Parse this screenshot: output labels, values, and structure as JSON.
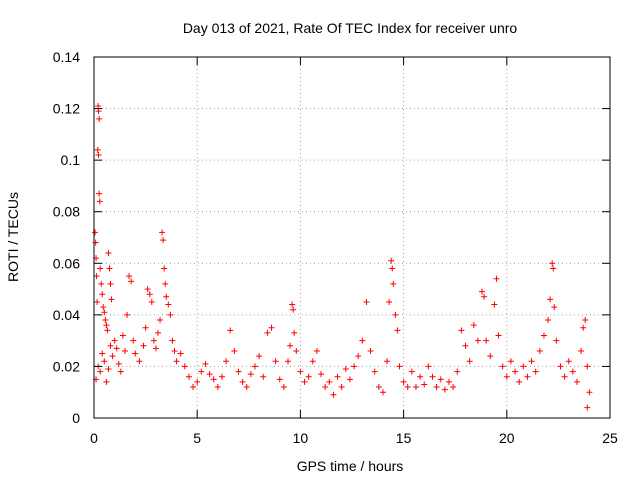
{
  "chart_data": {
    "type": "scatter",
    "title": "Day 013 of 2021, Rate Of TEC Index for receiver unro",
    "xlabel": "GPS time / hours",
    "ylabel": "ROTI / TECUs",
    "xlim": [
      0,
      25
    ],
    "ylim": [
      0,
      0.14
    ],
    "xticks": [
      0,
      5,
      10,
      15,
      20,
      25
    ],
    "yticks": [
      0,
      0.02,
      0.04,
      0.06,
      0.08,
      0.1,
      0.12,
      0.14
    ],
    "xtick_labels": [
      "0",
      "5",
      "10",
      "15",
      "20",
      "25"
    ],
    "ytick_labels": [
      "0",
      "0.02",
      "0.04",
      "0.06",
      "0.08",
      "0.1",
      "0.12",
      "0.14"
    ],
    "grid": true,
    "marker": "plus",
    "color": "#ff0000",
    "points": [
      [
        0.05,
        0.072
      ],
      [
        0.08,
        0.068
      ],
      [
        0.1,
        0.062
      ],
      [
        0.12,
        0.055
      ],
      [
        0.15,
        0.045
      ],
      [
        0.2,
        0.121
      ],
      [
        0.22,
        0.119
      ],
      [
        0.25,
        0.116
      ],
      [
        0.18,
        0.104
      ],
      [
        0.22,
        0.102
      ],
      [
        0.25,
        0.087
      ],
      [
        0.28,
        0.084
      ],
      [
        0.3,
        0.058
      ],
      [
        0.35,
        0.052
      ],
      [
        0.4,
        0.048
      ],
      [
        0.45,
        0.043
      ],
      [
        0.5,
        0.041
      ],
      [
        0.55,
        0.038
      ],
      [
        0.6,
        0.036
      ],
      [
        0.65,
        0.034
      ],
      [
        0.7,
        0.064
      ],
      [
        0.75,
        0.058
      ],
      [
        0.8,
        0.052
      ],
      [
        0.85,
        0.046
      ],
      [
        0.1,
        0.015
      ],
      [
        0.2,
        0.02
      ],
      [
        0.3,
        0.018
      ],
      [
        0.4,
        0.025
      ],
      [
        0.5,
        0.022
      ],
      [
        0.6,
        0.014
      ],
      [
        0.7,
        0.019
      ],
      [
        0.8,
        0.028
      ],
      [
        0.9,
        0.024
      ],
      [
        1.0,
        0.03
      ],
      [
        1.1,
        0.027
      ],
      [
        1.2,
        0.021
      ],
      [
        1.3,
        0.018
      ],
      [
        1.4,
        0.032
      ],
      [
        1.5,
        0.026
      ],
      [
        1.6,
        0.04
      ],
      [
        1.7,
        0.055
      ],
      [
        1.8,
        0.053
      ],
      [
        1.9,
        0.03
      ],
      [
        2.0,
        0.025
      ],
      [
        2.2,
        0.022
      ],
      [
        2.4,
        0.028
      ],
      [
        2.5,
        0.035
      ],
      [
        2.6,
        0.05
      ],
      [
        2.7,
        0.048
      ],
      [
        2.8,
        0.045
      ],
      [
        2.9,
        0.03
      ],
      [
        3.0,
        0.027
      ],
      [
        3.1,
        0.033
      ],
      [
        3.2,
        0.038
      ],
      [
        3.3,
        0.072
      ],
      [
        3.35,
        0.069
      ],
      [
        3.4,
        0.058
      ],
      [
        3.45,
        0.052
      ],
      [
        3.5,
        0.047
      ],
      [
        3.6,
        0.044
      ],
      [
        3.7,
        0.04
      ],
      [
        3.8,
        0.03
      ],
      [
        3.9,
        0.026
      ],
      [
        4.0,
        0.022
      ],
      [
        4.2,
        0.025
      ],
      [
        4.4,
        0.02
      ],
      [
        4.6,
        0.016
      ],
      [
        4.8,
        0.012
      ],
      [
        5.0,
        0.014
      ],
      [
        5.2,
        0.018
      ],
      [
        5.4,
        0.021
      ],
      [
        5.6,
        0.017
      ],
      [
        5.8,
        0.015
      ],
      [
        6.0,
        0.012
      ],
      [
        6.2,
        0.016
      ],
      [
        6.4,
        0.022
      ],
      [
        6.6,
        0.034
      ],
      [
        6.8,
        0.026
      ],
      [
        7.0,
        0.018
      ],
      [
        7.2,
        0.014
      ],
      [
        7.4,
        0.012
      ],
      [
        7.6,
        0.017
      ],
      [
        7.8,
        0.02
      ],
      [
        8.0,
        0.024
      ],
      [
        8.2,
        0.016
      ],
      [
        8.4,
        0.033
      ],
      [
        8.6,
        0.035
      ],
      [
        8.8,
        0.022
      ],
      [
        9.0,
        0.015
      ],
      [
        9.2,
        0.012
      ],
      [
        9.4,
        0.022
      ],
      [
        9.5,
        0.028
      ],
      [
        9.6,
        0.044
      ],
      [
        9.65,
        0.042
      ],
      [
        9.7,
        0.033
      ],
      [
        9.8,
        0.026
      ],
      [
        10.0,
        0.018
      ],
      [
        10.2,
        0.014
      ],
      [
        10.4,
        0.016
      ],
      [
        10.6,
        0.022
      ],
      [
        10.8,
        0.026
      ],
      [
        11.0,
        0.017
      ],
      [
        11.2,
        0.012
      ],
      [
        11.4,
        0.014
      ],
      [
        11.6,
        0.009
      ],
      [
        11.8,
        0.016
      ],
      [
        12.0,
        0.012
      ],
      [
        12.2,
        0.019
      ],
      [
        12.4,
        0.015
      ],
      [
        12.6,
        0.02
      ],
      [
        12.8,
        0.024
      ],
      [
        13.0,
        0.03
      ],
      [
        13.2,
        0.045
      ],
      [
        13.4,
        0.026
      ],
      [
        13.6,
        0.018
      ],
      [
        13.8,
        0.012
      ],
      [
        14.0,
        0.01
      ],
      [
        14.2,
        0.022
      ],
      [
        14.3,
        0.045
      ],
      [
        14.4,
        0.061
      ],
      [
        14.45,
        0.058
      ],
      [
        14.5,
        0.052
      ],
      [
        14.6,
        0.04
      ],
      [
        14.7,
        0.034
      ],
      [
        14.8,
        0.02
      ],
      [
        15.0,
        0.014
      ],
      [
        15.2,
        0.012
      ],
      [
        15.4,
        0.018
      ],
      [
        15.6,
        0.012
      ],
      [
        15.8,
        0.016
      ],
      [
        16.0,
        0.013
      ],
      [
        16.2,
        0.02
      ],
      [
        16.4,
        0.016
      ],
      [
        16.6,
        0.012
      ],
      [
        16.8,
        0.015
      ],
      [
        17.0,
        0.011
      ],
      [
        17.2,
        0.014
      ],
      [
        17.4,
        0.012
      ],
      [
        17.6,
        0.018
      ],
      [
        17.8,
        0.034
      ],
      [
        18.0,
        0.028
      ],
      [
        18.2,
        0.022
      ],
      [
        18.4,
        0.036
      ],
      [
        18.6,
        0.03
      ],
      [
        18.8,
        0.049
      ],
      [
        18.9,
        0.047
      ],
      [
        19.0,
        0.03
      ],
      [
        19.2,
        0.024
      ],
      [
        19.4,
        0.044
      ],
      [
        19.5,
        0.054
      ],
      [
        19.6,
        0.032
      ],
      [
        19.8,
        0.02
      ],
      [
        20.0,
        0.016
      ],
      [
        20.2,
        0.022
      ],
      [
        20.4,
        0.018
      ],
      [
        20.6,
        0.014
      ],
      [
        20.8,
        0.02
      ],
      [
        21.0,
        0.016
      ],
      [
        21.2,
        0.022
      ],
      [
        21.4,
        0.018
      ],
      [
        21.6,
        0.026
      ],
      [
        21.8,
        0.032
      ],
      [
        22.0,
        0.038
      ],
      [
        22.1,
        0.046
      ],
      [
        22.2,
        0.06
      ],
      [
        22.25,
        0.058
      ],
      [
        22.3,
        0.043
      ],
      [
        22.4,
        0.03
      ],
      [
        22.6,
        0.02
      ],
      [
        22.8,
        0.016
      ],
      [
        23.0,
        0.022
      ],
      [
        23.2,
        0.018
      ],
      [
        23.4,
        0.014
      ],
      [
        23.6,
        0.026
      ],
      [
        23.7,
        0.035
      ],
      [
        23.8,
        0.038
      ],
      [
        23.9,
        0.02
      ],
      [
        24.0,
        0.01
      ],
      [
        23.9,
        0.004
      ]
    ]
  }
}
